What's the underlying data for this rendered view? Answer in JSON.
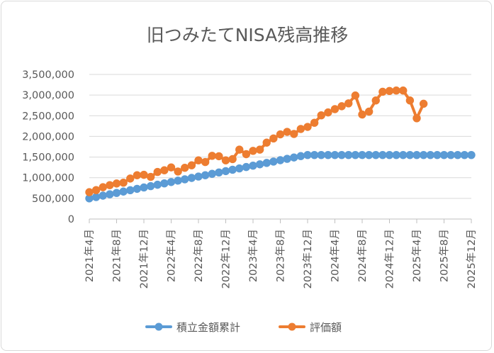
{
  "chart_data": {
    "type": "line",
    "title": "旧つみたてNISA残高推移",
    "xlabel": "",
    "ylabel": "",
    "ylim": [
      0,
      3500000
    ],
    "yticks": [
      0,
      500000,
      1000000,
      1500000,
      2000000,
      2500000,
      3000000,
      3500000
    ],
    "ytick_labels": [
      "0",
      "500,000",
      "1,000,000",
      "1,500,000",
      "2,000,000",
      "2,500,000",
      "3,000,000",
      "3,500,000"
    ],
    "x_range_months": [
      "2021-04",
      "2025-12"
    ],
    "xtick_labels": [
      "2021年4月",
      "2021年8月",
      "2021年12月",
      "2022年4月",
      "2022年8月",
      "2022年12月",
      "2023年4月",
      "2023年8月",
      "2023年12月",
      "2024年4月",
      "2024年8月",
      "2024年12月",
      "2025年4月",
      "2025年8月",
      "2025年12月"
    ],
    "grid": true,
    "legend_position": "bottom",
    "series": [
      {
        "name": "積立金額累計",
        "color": "#5b9bd5",
        "values": [
          500000,
          533000,
          566000,
          599000,
          632000,
          665000,
          698000,
          731000,
          764000,
          797000,
          830000,
          863000,
          896000,
          929000,
          962000,
          995000,
          1028000,
          1061000,
          1094000,
          1127000,
          1160000,
          1193000,
          1226000,
          1259000,
          1292000,
          1325000,
          1358000,
          1391000,
          1424000,
          1457000,
          1490000,
          1523000,
          1550000,
          1550000,
          1550000,
          1550000,
          1550000,
          1550000,
          1550000,
          1550000,
          1550000,
          1550000,
          1550000,
          1550000,
          1550000,
          1550000,
          1550000,
          1550000,
          1550000,
          1550000,
          1550000,
          1550000,
          1550000,
          1550000,
          1550000,
          1550000,
          1550000
        ]
      },
      {
        "name": "評価額",
        "color": "#ed7d31",
        "values": [
          650000,
          700000,
          770000,
          820000,
          860000,
          880000,
          980000,
          1060000,
          1070000,
          1020000,
          1140000,
          1180000,
          1250000,
          1150000,
          1240000,
          1300000,
          1420000,
          1380000,
          1530000,
          1520000,
          1420000,
          1450000,
          1680000,
          1570000,
          1650000,
          1680000,
          1850000,
          1950000,
          2050000,
          2110000,
          2060000,
          2180000,
          2230000,
          2330000,
          2510000,
          2580000,
          2660000,
          2730000,
          2800000,
          2990000,
          2530000,
          2600000,
          2870000,
          3080000,
          3100000,
          3110000,
          3110000,
          2870000,
          2440000,
          2790000
        ]
      }
    ]
  },
  "legend": {
    "items": [
      {
        "name": "積立金額累計",
        "color": "#5b9bd5"
      },
      {
        "name": "評価額",
        "color": "#ed7d31"
      }
    ]
  }
}
